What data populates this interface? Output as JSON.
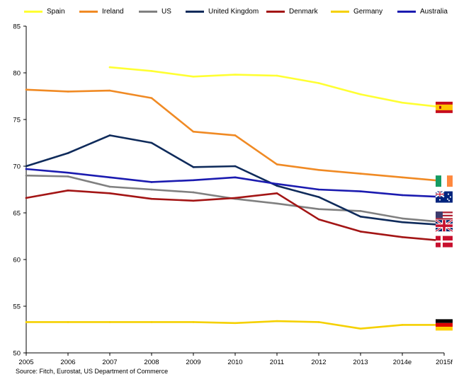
{
  "chart_data": {
    "type": "line",
    "categories": [
      "2005",
      "2006",
      "2007",
      "2008",
      "2009",
      "2010",
      "2011",
      "2012",
      "2013",
      "2014e",
      "2015f"
    ],
    "ylim": [
      50,
      85
    ],
    "yticks": [
      50,
      55,
      60,
      65,
      70,
      75,
      80,
      85
    ],
    "series": [
      {
        "name": "Spain",
        "color": "#ffff33",
        "flag": "spain-flag",
        "values": [
          null,
          null,
          80.6,
          80.2,
          79.6,
          79.8,
          79.7,
          78.9,
          77.7,
          76.8,
          76.3
        ]
      },
      {
        "name": "Ireland",
        "color": "#f08a24",
        "flag": "ireland-flag",
        "values": [
          78.2,
          78.0,
          78.1,
          77.3,
          73.7,
          73.3,
          70.2,
          69.6,
          69.2,
          68.8,
          68.4
        ]
      },
      {
        "name": "US",
        "color": "#808080",
        "flag": "us-flag",
        "values": [
          69.0,
          68.9,
          67.8,
          67.5,
          67.2,
          66.5,
          66.0,
          65.4,
          65.2,
          64.4,
          64.0
        ]
      },
      {
        "name": "United Kingdom",
        "color": "#0f2b5b",
        "flag": "uk-flag",
        "values": [
          70.0,
          71.4,
          73.3,
          72.5,
          69.9,
          70.0,
          67.9,
          66.7,
          64.6,
          64.0,
          63.7
        ]
      },
      {
        "name": "Denmark",
        "color": "#a31515",
        "flag": "denmark-flag",
        "values": [
          66.6,
          67.4,
          67.1,
          66.5,
          66.3,
          66.6,
          67.1,
          64.3,
          63.0,
          62.4,
          62.0
        ]
      },
      {
        "name": "Germany",
        "color": "#f5d000",
        "flag": "germany-flag",
        "values": [
          53.3,
          53.3,
          53.3,
          53.3,
          53.3,
          53.2,
          53.4,
          53.3,
          52.6,
          53.0,
          53.0
        ]
      },
      {
        "name": "Australia",
        "color": "#1b1bb0",
        "flag": "australia-flag",
        "values": [
          69.7,
          69.3,
          68.8,
          68.3,
          68.5,
          68.8,
          68.1,
          67.5,
          67.3,
          66.9,
          66.7
        ]
      }
    ],
    "source": "Source: Fitch, Eurostat, US Department of Commerce",
    "grid": false,
    "legend": "top"
  }
}
